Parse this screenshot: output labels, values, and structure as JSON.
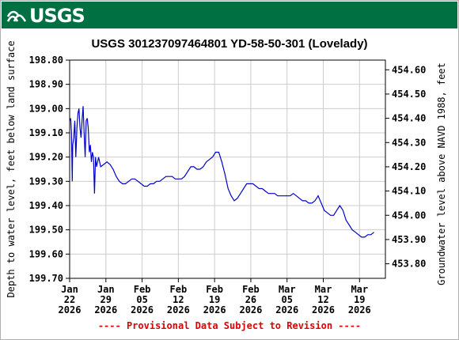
{
  "header": {
    "logo_text": "USGS"
  },
  "colors": {
    "banner": "#006f41",
    "series": "#0000cc",
    "grid": "#cccccc",
    "provisional": "#e00000"
  },
  "chart_data": {
    "type": "line",
    "title": "USGS 301237097464801 YD-58-50-301 (Lovelady)",
    "ylabel_left": "Depth to water level, feet below land surface",
    "ylabel_right": "Groundwater level above NAVD 1988, feet",
    "footnote": "---- Provisional Data Subject to Revision ----",
    "y_left": {
      "min": 198.8,
      "max": 199.7,
      "inverted": true,
      "ticks": [
        "198.80",
        "198.90",
        "199.00",
        "199.10",
        "199.20",
        "199.30",
        "199.40",
        "199.50",
        "199.60",
        "199.70"
      ]
    },
    "y_right": {
      "min": 453.74,
      "max": 454.64,
      "ticks": [
        "454.60",
        "454.50",
        "454.40",
        "454.30",
        "454.20",
        "454.10",
        "454.00",
        "453.90",
        "453.80"
      ]
    },
    "x_ticks": [
      {
        "day": 0,
        "line1": "Jan",
        "line2": "22",
        "line3": "2026"
      },
      {
        "day": 7,
        "line1": "Jan",
        "line2": "29",
        "line3": "2026"
      },
      {
        "day": 14,
        "line1": "Feb",
        "line2": "05",
        "line3": "2026"
      },
      {
        "day": 21,
        "line1": "Feb",
        "line2": "12",
        "line3": "2026"
      },
      {
        "day": 28,
        "line1": "Feb",
        "line2": "19",
        "line3": "2026"
      },
      {
        "day": 35,
        "line1": "Feb",
        "line2": "26",
        "line3": "2026"
      },
      {
        "day": 42,
        "line1": "Mar",
        "line2": "05",
        "line3": "2026"
      },
      {
        "day": 49,
        "line1": "Mar",
        "line2": "12",
        "line3": "2026"
      },
      {
        "day": 56,
        "line1": "Mar",
        "line2": "19",
        "line3": "2026"
      }
    ],
    "x_range": [
      0,
      61
    ],
    "grid": true,
    "series": [
      {
        "points": [
          [
            0.0,
            199.05
          ],
          [
            0.2,
            199.04
          ],
          [
            0.35,
            199.1
          ],
          [
            0.5,
            199.3
          ],
          [
            0.6,
            199.15
          ],
          [
            0.8,
            199.12
          ],
          [
            1.0,
            199.05
          ],
          [
            1.2,
            199.2
          ],
          [
            1.4,
            199.08
          ],
          [
            1.6,
            199.02
          ],
          [
            1.8,
            199.0
          ],
          [
            2.0,
            199.08
          ],
          [
            2.2,
            199.12
          ],
          [
            2.4,
            199.05
          ],
          [
            2.6,
            198.99
          ],
          [
            2.8,
            199.1
          ],
          [
            3.0,
            199.2
          ],
          [
            3.2,
            199.05
          ],
          [
            3.4,
            199.04
          ],
          [
            3.6,
            199.08
          ],
          [
            3.8,
            199.18
          ],
          [
            4.0,
            199.15
          ],
          [
            4.2,
            199.22
          ],
          [
            4.4,
            199.18
          ],
          [
            4.6,
            199.2
          ],
          [
            4.8,
            199.35
          ],
          [
            5.0,
            199.2
          ],
          [
            5.2,
            199.24
          ],
          [
            5.6,
            199.2
          ],
          [
            6.0,
            199.24
          ],
          [
            6.6,
            199.23
          ],
          [
            7.2,
            199.22
          ],
          [
            7.8,
            199.23
          ],
          [
            8.4,
            199.25
          ],
          [
            9.0,
            199.28
          ],
          [
            9.6,
            199.3
          ],
          [
            10.2,
            199.31
          ],
          [
            10.8,
            199.31
          ],
          [
            11.4,
            199.3
          ],
          [
            12.0,
            199.29
          ],
          [
            12.6,
            199.29
          ],
          [
            13.2,
            199.3
          ],
          [
            13.8,
            199.31
          ],
          [
            14.4,
            199.32
          ],
          [
            15.0,
            199.32
          ],
          [
            15.6,
            199.31
          ],
          [
            16.2,
            199.31
          ],
          [
            16.8,
            199.3
          ],
          [
            17.4,
            199.3
          ],
          [
            18.0,
            199.29
          ],
          [
            18.6,
            199.28
          ],
          [
            19.2,
            199.28
          ],
          [
            19.8,
            199.28
          ],
          [
            20.4,
            199.29
          ],
          [
            21.0,
            199.29
          ],
          [
            21.6,
            199.29
          ],
          [
            22.2,
            199.28
          ],
          [
            22.8,
            199.26
          ],
          [
            23.4,
            199.24
          ],
          [
            24.0,
            199.24
          ],
          [
            24.6,
            199.25
          ],
          [
            25.2,
            199.25
          ],
          [
            25.8,
            199.24
          ],
          [
            26.4,
            199.22
          ],
          [
            27.0,
            199.21
          ],
          [
            27.6,
            199.2
          ],
          [
            28.2,
            199.18
          ],
          [
            28.8,
            199.18
          ],
          [
            29.4,
            199.22
          ],
          [
            30.0,
            199.27
          ],
          [
            30.6,
            199.33
          ],
          [
            31.2,
            199.36
          ],
          [
            31.8,
            199.38
          ],
          [
            32.4,
            199.37
          ],
          [
            33.0,
            199.35
          ],
          [
            33.6,
            199.33
          ],
          [
            34.2,
            199.31
          ],
          [
            34.8,
            199.31
          ],
          [
            35.4,
            199.31
          ],
          [
            36.0,
            199.32
          ],
          [
            36.6,
            199.33
          ],
          [
            37.2,
            199.33
          ],
          [
            37.8,
            199.34
          ],
          [
            38.4,
            199.35
          ],
          [
            39.0,
            199.35
          ],
          [
            39.6,
            199.35
          ],
          [
            40.2,
            199.36
          ],
          [
            40.8,
            199.36
          ],
          [
            41.4,
            199.36
          ],
          [
            42.0,
            199.36
          ],
          [
            42.6,
            199.36
          ],
          [
            43.2,
            199.35
          ],
          [
            43.8,
            199.36
          ],
          [
            44.4,
            199.37
          ],
          [
            45.0,
            199.38
          ],
          [
            45.6,
            199.38
          ],
          [
            46.2,
            199.39
          ],
          [
            46.8,
            199.39
          ],
          [
            47.4,
            199.38
          ],
          [
            48.0,
            199.36
          ],
          [
            48.6,
            199.39
          ],
          [
            49.2,
            199.42
          ],
          [
            49.8,
            199.43
          ],
          [
            50.4,
            199.44
          ],
          [
            51.0,
            199.44
          ],
          [
            51.6,
            199.42
          ],
          [
            52.2,
            199.4
          ],
          [
            52.8,
            199.42
          ],
          [
            53.4,
            199.46
          ],
          [
            54.0,
            199.48
          ],
          [
            54.6,
            199.5
          ],
          [
            55.2,
            199.51
          ],
          [
            55.8,
            199.52
          ],
          [
            56.4,
            199.53
          ],
          [
            57.0,
            199.53
          ],
          [
            57.6,
            199.52
          ],
          [
            58.2,
            199.52
          ],
          [
            58.8,
            199.51
          ]
        ]
      }
    ]
  }
}
